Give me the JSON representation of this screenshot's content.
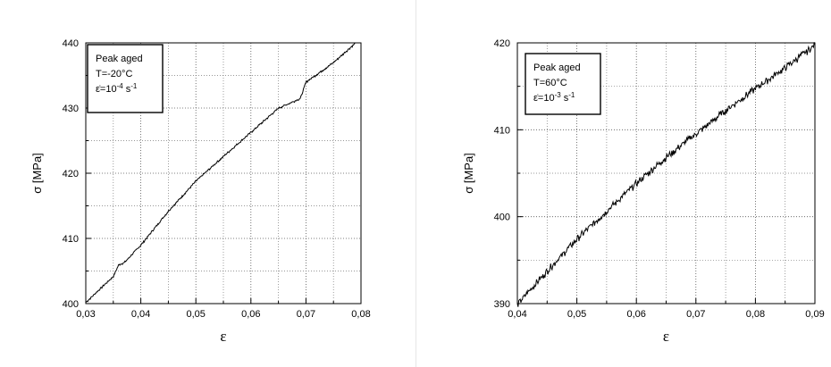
{
  "chart_data": [
    {
      "type": "line",
      "xlabel": "ε",
      "ylabel": "σ [MPa]",
      "xlim": [
        0.03,
        0.08
      ],
      "ylim": [
        400,
        440
      ],
      "x_ticks": [
        "0,03",
        "0,04",
        "0,05",
        "0,06",
        "0,07",
        "0,08"
      ],
      "y_ticks": [
        "400",
        "410",
        "420",
        "430",
        "440"
      ],
      "grid": true,
      "legend": {
        "placement": "top-left",
        "line1": "Peak aged",
        "line2": "T=-20°C",
        "rate_symbol": "ε̇=10",
        "rate_exponent": "-4",
        "rate_unit": " s",
        "rate_unit_exponent": "-1"
      },
      "series": [
        {
          "x": [
            0.03,
            0.035,
            0.036,
            0.037,
            0.04,
            0.045,
            0.05,
            0.055,
            0.06,
            0.065,
            0.069,
            0.07,
            0.075,
            0.079
          ],
          "y": [
            400.2,
            404.2,
            406.0,
            406.3,
            409.0,
            414.2,
            418.8,
            422.6,
            426.3,
            430.0,
            431.5,
            434.0,
            437.0,
            440.0
          ]
        }
      ]
    },
    {
      "type": "line",
      "xlabel": "ε",
      "ylabel": "σ [MPa]",
      "xlim": [
        0.04,
        0.09
      ],
      "ylim": [
        390,
        420
      ],
      "x_ticks": [
        "0,04",
        "0,05",
        "0,06",
        "0,07",
        "0,08",
        "0,09"
      ],
      "y_ticks": [
        "390",
        "400",
        "410",
        "420"
      ],
      "grid": true,
      "legend": {
        "placement": "top-left",
        "line1": "Peak aged",
        "line2": "T=60°C",
        "rate_symbol": "ε̇=10",
        "rate_exponent": "-3",
        "rate_unit": " s",
        "rate_unit_exponent": "-1"
      },
      "series": [
        {
          "x": [
            0.04,
            0.045,
            0.05,
            0.055,
            0.06,
            0.065,
            0.07,
            0.075,
            0.08,
            0.085,
            0.09
          ],
          "y": [
            390.0,
            393.8,
            397.5,
            400.7,
            403.9,
            406.9,
            409.6,
            412.3,
            414.8,
            417.2,
            419.8
          ]
        }
      ]
    }
  ]
}
